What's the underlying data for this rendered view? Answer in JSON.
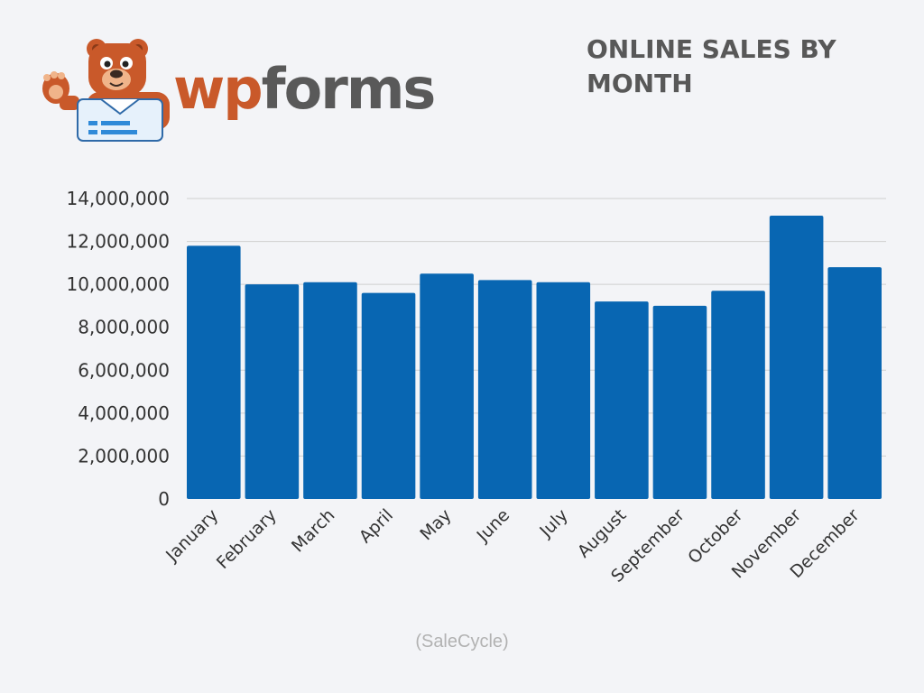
{
  "logo": {
    "wp": "wp",
    "forms": "forms",
    "icon": "wpforms-bear-mascot"
  },
  "colors": {
    "bar": "#0866b2",
    "grid": "#cfcfcf",
    "axis_text": "#333333",
    "title": "#585858",
    "logo_wp": "#c9592a",
    "logo_forms": "#595959"
  },
  "chart_data": {
    "type": "bar",
    "title": "ONLINE SALES BY MONTH",
    "categories": [
      "January",
      "February",
      "March",
      "April",
      "May",
      "June",
      "July",
      "August",
      "September",
      "October",
      "November",
      "December"
    ],
    "values": [
      11800000,
      10000000,
      10100000,
      9600000,
      10500000,
      10200000,
      10100000,
      9200000,
      9000000,
      9700000,
      13200000,
      10800000
    ],
    "y_ticks": [
      "0",
      "2,000,000",
      "4,000,000",
      "6,000,000",
      "8,000,000",
      "10,000,000",
      "12,000,000",
      "14,000,000"
    ],
    "ylim": [
      0,
      14000000
    ],
    "grid": true,
    "legend": "none",
    "source": "(SaleCycle)"
  }
}
